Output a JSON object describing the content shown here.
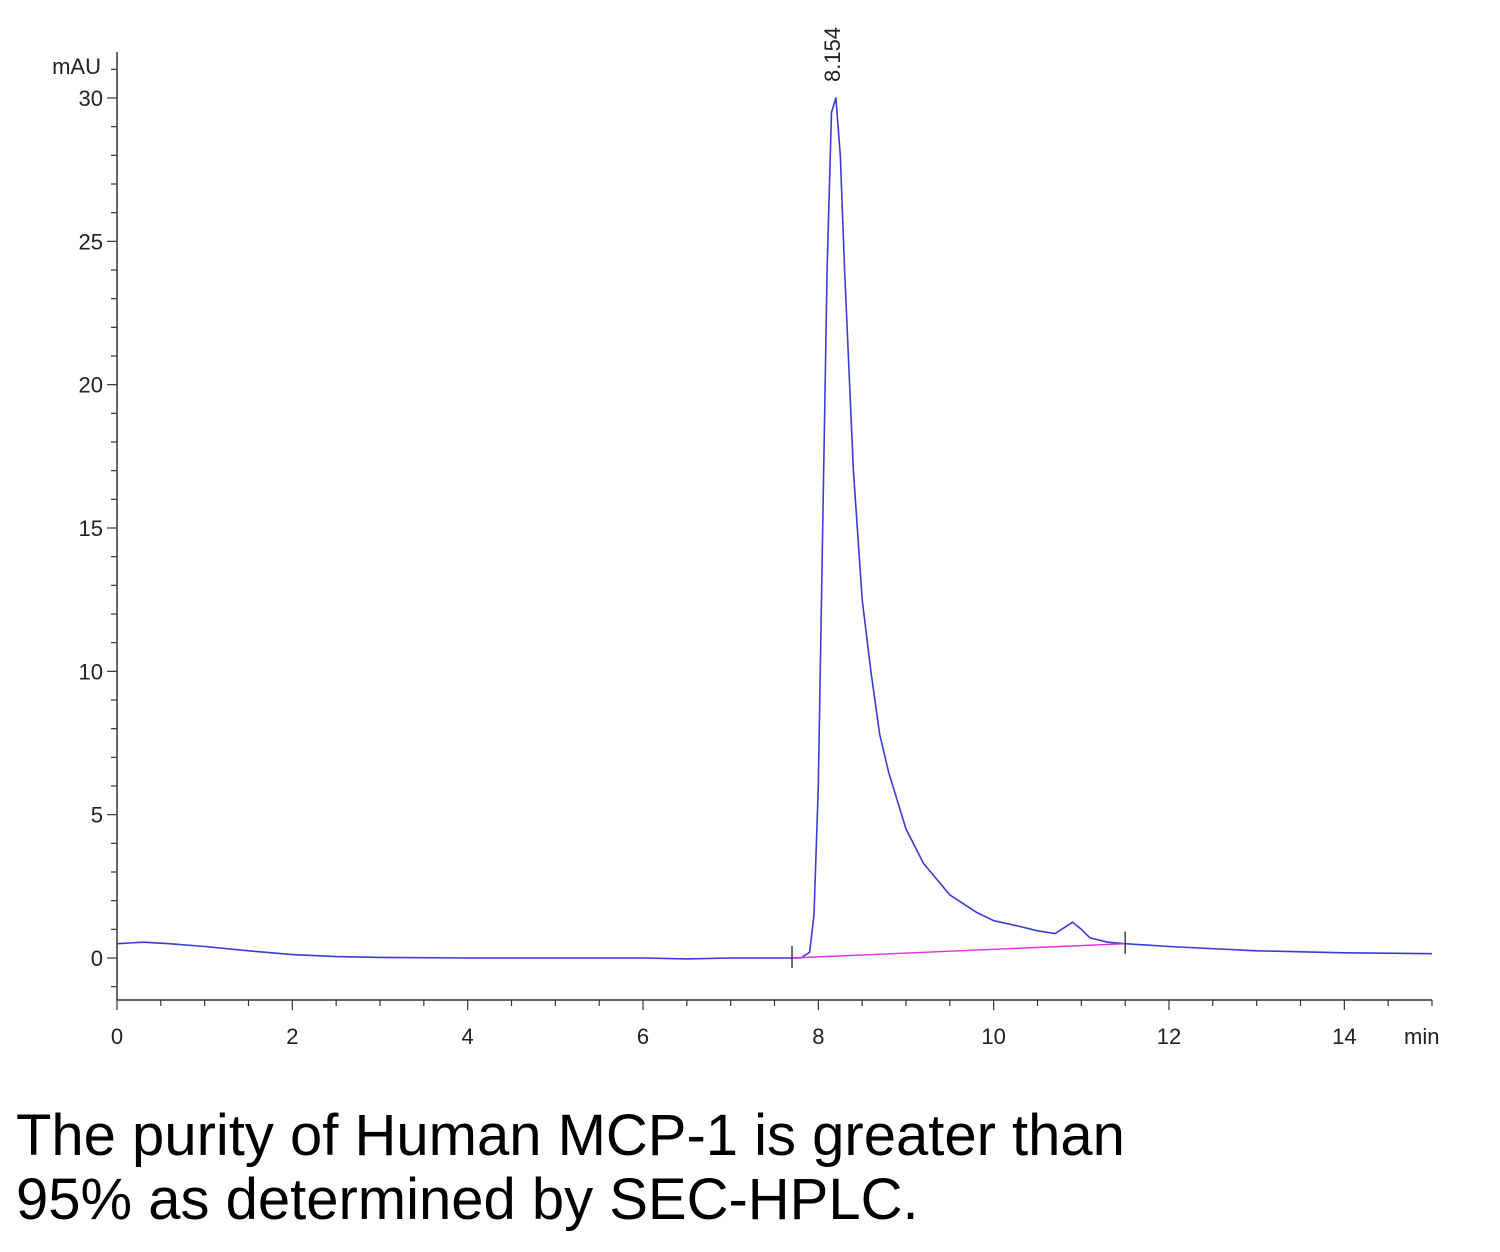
{
  "chart_data": {
    "type": "line",
    "title": "",
    "xlabel": "min",
    "ylabel": "mAU",
    "xlim": [
      0,
      15
    ],
    "ylim": [
      -1.5,
      31.5
    ],
    "x_ticks": [
      0,
      2,
      4,
      6,
      8,
      10,
      12,
      14
    ],
    "y_ticks": [
      0,
      5,
      10,
      15,
      20,
      25,
      30
    ],
    "grid": false,
    "series": [
      {
        "color": "#3b3bd6",
        "x": [
          0,
          0.3,
          0.6,
          1.0,
          1.5,
          2.0,
          2.5,
          3.0,
          4.0,
          5.0,
          6.0,
          6.5,
          7.0,
          7.5,
          7.8,
          7.9,
          7.95,
          8.0,
          8.05,
          8.1,
          8.15,
          8.2,
          8.25,
          8.3,
          8.4,
          8.5,
          8.6,
          8.7,
          8.8,
          9.0,
          9.2,
          9.5,
          9.8,
          10.0,
          10.3,
          10.5,
          10.7,
          10.8,
          10.9,
          11.0,
          11.1,
          11.3,
          11.5,
          12.0,
          13.0,
          14.0,
          15.0
        ],
        "y": [
          0.5,
          0.55,
          0.5,
          0.4,
          0.25,
          0.12,
          0.05,
          0.02,
          0.0,
          0.0,
          0.0,
          -0.03,
          0.0,
          0.0,
          0.0,
          0.2,
          1.5,
          6.0,
          15.0,
          24.0,
          29.5,
          30.0,
          28.0,
          24.0,
          17.0,
          12.5,
          10.0,
          7.8,
          6.5,
          4.5,
          3.3,
          2.2,
          1.6,
          1.3,
          1.1,
          0.95,
          0.85,
          1.05,
          1.25,
          1.0,
          0.7,
          0.55,
          0.5,
          0.4,
          0.25,
          0.18,
          0.15
        ]
      },
      {
        "color": "#e030e0",
        "x": [
          7.7,
          11.5
        ],
        "y": [
          0.0,
          0.5
        ]
      }
    ],
    "annotations": [
      {
        "text": "8.154",
        "x": 8.154,
        "y": 30.0
      }
    ],
    "integration_marks": [
      7.7,
      11.5
    ]
  },
  "caption": {
    "line1": "The purity of Human MCP-1 is greater than",
    "line2": "95% as determined by SEC-HPLC."
  }
}
